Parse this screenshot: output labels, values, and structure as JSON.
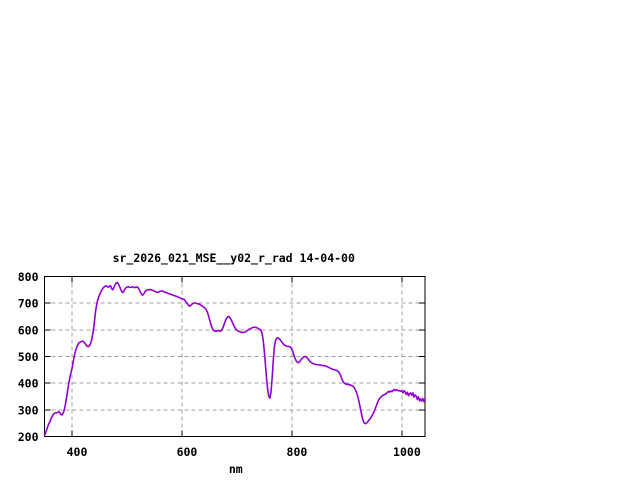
{
  "window": {
    "background": "#ffffff"
  },
  "chart_data": {
    "type": "line",
    "title": "sr_2026_021_MSE__y02_r_rad 14-04-00",
    "xlabel": "nm",
    "ylabel": "",
    "xlim": [
      350,
      1042
    ],
    "ylim": [
      200,
      800
    ],
    "x_ticks": [
      400,
      600,
      800,
      1000
    ],
    "y_ticks": [
      200,
      300,
      400,
      500,
      600,
      700,
      800
    ],
    "grid": true,
    "legend": "none",
    "line_color": "#9400d3",
    "grid_color": "#a0a0a0",
    "frame_color": "#000000",
    "series": [
      {
        "points": [
          [
            350,
            204
          ],
          [
            352,
            213
          ],
          [
            354,
            225
          ],
          [
            356,
            238
          ],
          [
            358,
            248
          ],
          [
            360,
            257
          ],
          [
            362,
            267
          ],
          [
            364,
            276
          ],
          [
            366,
            283
          ],
          [
            368,
            287
          ],
          [
            370,
            289
          ],
          [
            372,
            289
          ],
          [
            374,
            290
          ],
          [
            376,
            293
          ],
          [
            378,
            289
          ],
          [
            380,
            282
          ],
          [
            382,
            281
          ],
          [
            384,
            288
          ],
          [
            386,
            300
          ],
          [
            388,
            320
          ],
          [
            390,
            345
          ],
          [
            392,
            372
          ],
          [
            394,
            398
          ],
          [
            396,
            420
          ],
          [
            398,
            438
          ],
          [
            400,
            455
          ],
          [
            402,
            478
          ],
          [
            404,
            500
          ],
          [
            406,
            518
          ],
          [
            408,
            532
          ],
          [
            410,
            542
          ],
          [
            412,
            549
          ],
          [
            414,
            553
          ],
          [
            416,
            555
          ],
          [
            418,
            557
          ],
          [
            420,
            557
          ],
          [
            422,
            553
          ],
          [
            424,
            548
          ],
          [
            426,
            542
          ],
          [
            428,
            538
          ],
          [
            430,
            537
          ],
          [
            432,
            541
          ],
          [
            434,
            550
          ],
          [
            436,
            565
          ],
          [
            438,
            588
          ],
          [
            440,
            615
          ],
          [
            442,
            655
          ],
          [
            444,
            685
          ],
          [
            446,
            705
          ],
          [
            448,
            720
          ],
          [
            450,
            731
          ],
          [
            452,
            740
          ],
          [
            454,
            748
          ],
          [
            456,
            755
          ],
          [
            458,
            760
          ],
          [
            460,
            763
          ],
          [
            462,
            765
          ],
          [
            464,
            763
          ],
          [
            466,
            760
          ],
          [
            468,
            763
          ],
          [
            470,
            766
          ],
          [
            472,
            755
          ],
          [
            474,
            750
          ],
          [
            476,
            758
          ],
          [
            478,
            768
          ],
          [
            480,
            775
          ],
          [
            482,
            778
          ],
          [
            484,
            773
          ],
          [
            486,
            765
          ],
          [
            488,
            755
          ],
          [
            490,
            745
          ],
          [
            492,
            740
          ],
          [
            494,
            744
          ],
          [
            496,
            752
          ],
          [
            498,
            758
          ],
          [
            500,
            760
          ],
          [
            502,
            762
          ],
          [
            504,
            760
          ],
          [
            506,
            759
          ],
          [
            508,
            760
          ],
          [
            510,
            761
          ],
          [
            512,
            760
          ],
          [
            514,
            758
          ],
          [
            516,
            760
          ],
          [
            518,
            761
          ],
          [
            520,
            758
          ],
          [
            522,
            752
          ],
          [
            524,
            743
          ],
          [
            526,
            735
          ],
          [
            528,
            730
          ],
          [
            530,
            733
          ],
          [
            532,
            740
          ],
          [
            534,
            746
          ],
          [
            536,
            749
          ],
          [
            538,
            750
          ],
          [
            540,
            751
          ],
          [
            544,
            750
          ],
          [
            548,
            747
          ],
          [
            552,
            743
          ],
          [
            556,
            740
          ],
          [
            560,
            744
          ],
          [
            564,
            746
          ],
          [
            568,
            742
          ],
          [
            572,
            739
          ],
          [
            576,
            736
          ],
          [
            580,
            733
          ],
          [
            584,
            730
          ],
          [
            588,
            727
          ],
          [
            592,
            724
          ],
          [
            596,
            720
          ],
          [
            600,
            716
          ],
          [
            604,
            714
          ],
          [
            608,
            702
          ],
          [
            612,
            692
          ],
          [
            614,
            689
          ],
          [
            616,
            692
          ],
          [
            620,
            699
          ],
          [
            624,
            701
          ],
          [
            628,
            698
          ],
          [
            632,
            696
          ],
          [
            636,
            690
          ],
          [
            640,
            685
          ],
          [
            642,
            681
          ],
          [
            644,
            676
          ],
          [
            646,
            667
          ],
          [
            648,
            654
          ],
          [
            650,
            639
          ],
          [
            652,
            624
          ],
          [
            654,
            611
          ],
          [
            656,
            602
          ],
          [
            658,
            597
          ],
          [
            660,
            595
          ],
          [
            662,
            594
          ],
          [
            664,
            596
          ],
          [
            666,
            598
          ],
          [
            668,
            596
          ],
          [
            670,
            595
          ],
          [
            672,
            598
          ],
          [
            674,
            606
          ],
          [
            676,
            617
          ],
          [
            678,
            629
          ],
          [
            680,
            639
          ],
          [
            682,
            646
          ],
          [
            684,
            650
          ],
          [
            686,
            649
          ],
          [
            688,
            643
          ],
          [
            690,
            635
          ],
          [
            692,
            626
          ],
          [
            694,
            617
          ],
          [
            696,
            609
          ],
          [
            698,
            603
          ],
          [
            700,
            599
          ],
          [
            702,
            596
          ],
          [
            704,
            594
          ],
          [
            706,
            592
          ],
          [
            708,
            591
          ],
          [
            710,
            590
          ],
          [
            712,
            590
          ],
          [
            714,
            591
          ],
          [
            716,
            593
          ],
          [
            718,
            596
          ],
          [
            720,
            599
          ],
          [
            722,
            602
          ],
          [
            724,
            604
          ],
          [
            726,
            606
          ],
          [
            728,
            608
          ],
          [
            730,
            609
          ],
          [
            732,
            610
          ],
          [
            734,
            609
          ],
          [
            736,
            608
          ],
          [
            738,
            606
          ],
          [
            740,
            604
          ],
          [
            742,
            601
          ],
          [
            744,
            597
          ],
          [
            746,
            584
          ],
          [
            748,
            558
          ],
          [
            750,
            516
          ],
          [
            752,
            466
          ],
          [
            754,
            416
          ],
          [
            756,
            376
          ],
          [
            758,
            351
          ],
          [
            760,
            344
          ],
          [
            762,
            366
          ],
          [
            764,
            417
          ],
          [
            766,
            482
          ],
          [
            768,
            533
          ],
          [
            770,
            558
          ],
          [
            772,
            568
          ],
          [
            774,
            570
          ],
          [
            776,
            568
          ],
          [
            778,
            564
          ],
          [
            780,
            559
          ],
          [
            782,
            554
          ],
          [
            784,
            548
          ],
          [
            786,
            544
          ],
          [
            788,
            541
          ],
          [
            790,
            539
          ],
          [
            792,
            538
          ],
          [
            794,
            538
          ],
          [
            796,
            537
          ],
          [
            798,
            533
          ],
          [
            800,
            527
          ],
          [
            802,
            516
          ],
          [
            804,
            503
          ],
          [
            806,
            491
          ],
          [
            808,
            483
          ],
          [
            810,
            478
          ],
          [
            812,
            477
          ],
          [
            814,
            480
          ],
          [
            816,
            486
          ],
          [
            818,
            492
          ],
          [
            820,
            496
          ],
          [
            822,
            499
          ],
          [
            824,
            500
          ],
          [
            826,
            498
          ],
          [
            828,
            494
          ],
          [
            830,
            489
          ],
          [
            832,
            484
          ],
          [
            834,
            479
          ],
          [
            836,
            476
          ],
          [
            838,
            474
          ],
          [
            840,
            472
          ],
          [
            844,
            470
          ],
          [
            848,
            469
          ],
          [
            852,
            468
          ],
          [
            856,
            466
          ],
          [
            860,
            465
          ],
          [
            864,
            462
          ],
          [
            868,
            458
          ],
          [
            872,
            454
          ],
          [
            876,
            451
          ],
          [
            880,
            449
          ],
          [
            882,
            447
          ],
          [
            884,
            444
          ],
          [
            886,
            439
          ],
          [
            888,
            432
          ],
          [
            890,
            421
          ],
          [
            892,
            410
          ],
          [
            894,
            403
          ],
          [
            896,
            399
          ],
          [
            898,
            397
          ],
          [
            900,
            396
          ],
          [
            904,
            394
          ],
          [
            908,
            392
          ],
          [
            912,
            387
          ],
          [
            914,
            381
          ],
          [
            916,
            373
          ],
          [
            918,
            362
          ],
          [
            920,
            348
          ],
          [
            922,
            331
          ],
          [
            924,
            311
          ],
          [
            926,
            290
          ],
          [
            928,
            271
          ],
          [
            930,
            257
          ],
          [
            932,
            250
          ],
          [
            934,
            248
          ],
          [
            936,
            251
          ],
          [
            938,
            256
          ],
          [
            940,
            261
          ],
          [
            942,
            266
          ],
          [
            944,
            272
          ],
          [
            946,
            279
          ],
          [
            948,
            287
          ],
          [
            950,
            296
          ],
          [
            952,
            307
          ],
          [
            954,
            318
          ],
          [
            956,
            329
          ],
          [
            958,
            338
          ],
          [
            960,
            344
          ],
          [
            962,
            349
          ],
          [
            964,
            352
          ],
          [
            966,
            355
          ],
          [
            968,
            357
          ],
          [
            970,
            359
          ],
          [
            972,
            362
          ],
          [
            974,
            366
          ],
          [
            976,
            369
          ],
          [
            978,
            367
          ],
          [
            980,
            371
          ],
          [
            982,
            368
          ],
          [
            984,
            373
          ],
          [
            986,
            376
          ],
          [
            988,
            372
          ],
          [
            990,
            376
          ],
          [
            992,
            373
          ],
          [
            994,
            371
          ],
          [
            996,
            372
          ],
          [
            998,
            370
          ],
          [
            1000,
            371
          ],
          [
            1002,
            364
          ],
          [
            1004,
            372
          ],
          [
            1006,
            367
          ],
          [
            1008,
            358
          ],
          [
            1010,
            366
          ],
          [
            1012,
            353
          ],
          [
            1014,
            360
          ],
          [
            1016,
            363
          ],
          [
            1018,
            355
          ],
          [
            1020,
            363
          ],
          [
            1022,
            348
          ],
          [
            1024,
            356
          ],
          [
            1026,
            351
          ],
          [
            1028,
            339
          ],
          [
            1030,
            349
          ],
          [
            1032,
            334
          ],
          [
            1034,
            341
          ],
          [
            1036,
            333
          ],
          [
            1038,
            342
          ],
          [
            1040,
            330
          ],
          [
            1042,
            344
          ]
        ]
      }
    ]
  }
}
